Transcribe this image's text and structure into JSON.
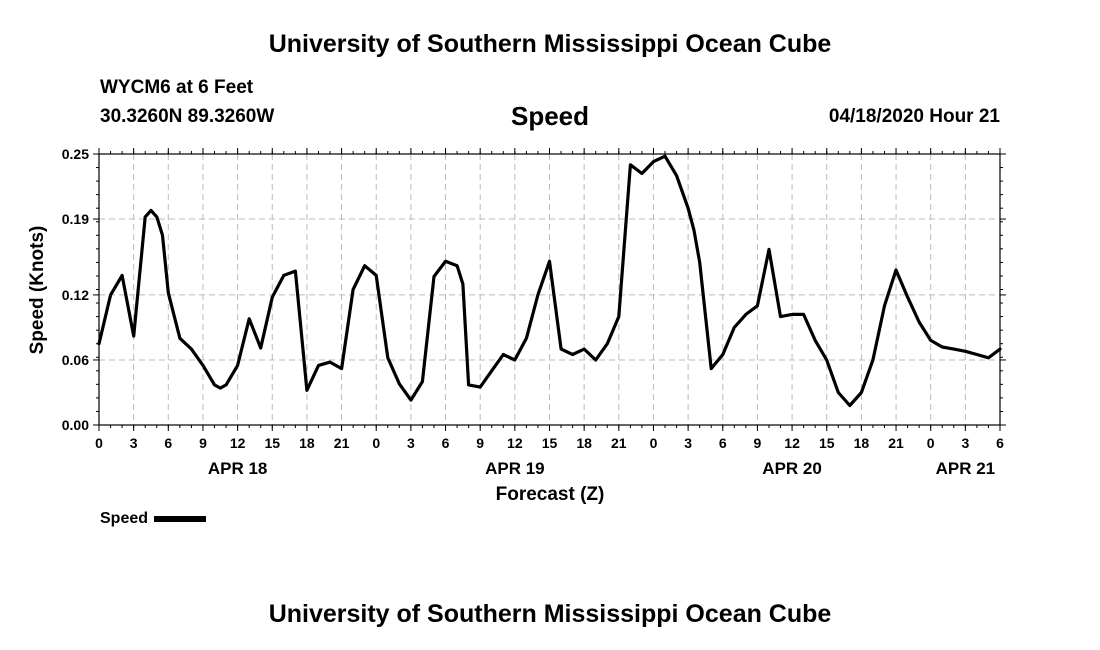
{
  "header": {
    "title_top": "University of Southern Mississippi Ocean Cube",
    "title_bottom": "University of Southern Mississippi Ocean Cube",
    "station": "WYCM6 at 6 Feet",
    "coords": "30.3260N 89.3260W",
    "datetime": "04/18/2020 Hour 21"
  },
  "legend": {
    "label": "Speed"
  },
  "chart_data": {
    "type": "line",
    "title": "Speed",
    "xlabel": "Forecast (Z)",
    "ylabel": "Speed (Knots)",
    "ylim": [
      0,
      0.25
    ],
    "yticks": [
      0.0,
      0.06,
      0.12,
      0.19,
      0.25
    ],
    "ytick_labels": [
      "0.00",
      "0.06",
      "0.12",
      "0.19",
      "0.25"
    ],
    "xlim": [
      0,
      78
    ],
    "xticks_hours": [
      0,
      3,
      6,
      9,
      12,
      15,
      18,
      21,
      24,
      27,
      30,
      33,
      36,
      39,
      42,
      45,
      48,
      51,
      54,
      57,
      60,
      63,
      66,
      69,
      72,
      75,
      78
    ],
    "xtick_labels": [
      "0",
      "3",
      "6",
      "9",
      "12",
      "15",
      "18",
      "21",
      "0",
      "3",
      "6",
      "9",
      "12",
      "15",
      "18",
      "21",
      "0",
      "3",
      "6",
      "9",
      "12",
      "15",
      "18",
      "21",
      "0",
      "3",
      "6"
    ],
    "date_labels": [
      {
        "label": "APR 18",
        "hour": 12
      },
      {
        "label": "APR 19",
        "hour": 36
      },
      {
        "label": "APR 20",
        "hour": 60
      },
      {
        "label": "APR 21",
        "hour": 75
      }
    ],
    "grid": true,
    "series": [
      {
        "name": "Speed",
        "x": [
          0,
          1,
          2,
          3,
          4,
          4.5,
          5,
          5.5,
          6,
          7,
          8,
          9,
          10,
          10.5,
          11,
          12,
          13,
          14,
          15,
          16,
          17,
          18,
          19,
          20,
          21,
          22,
          23,
          24,
          25,
          26,
          27,
          28,
          29,
          30,
          31,
          31.5,
          32,
          33,
          34,
          35,
          36,
          37,
          38,
          39,
          40,
          41,
          42,
          43,
          44,
          45,
          46,
          47,
          48,
          49,
          50,
          51,
          51.5,
          52,
          53,
          54,
          55,
          56,
          57,
          58,
          59,
          60,
          61,
          62,
          63,
          64,
          65,
          66,
          67,
          68,
          69,
          70,
          71,
          72,
          73,
          74,
          75,
          76,
          77,
          78
        ],
        "y": [
          0.075,
          0.12,
          0.138,
          0.082,
          0.192,
          0.198,
          0.192,
          0.175,
          0.122,
          0.08,
          0.07,
          0.055,
          0.037,
          0.034,
          0.037,
          0.055,
          0.098,
          0.071,
          0.118,
          0.138,
          0.142,
          0.032,
          0.055,
          0.058,
          0.052,
          0.125,
          0.147,
          0.138,
          0.062,
          0.038,
          0.023,
          0.04,
          0.137,
          0.151,
          0.147,
          0.13,
          0.037,
          0.035,
          0.05,
          0.065,
          0.06,
          0.08,
          0.12,
          0.151,
          0.07,
          0.065,
          0.07,
          0.06,
          0.075,
          0.1,
          0.24,
          0.232,
          0.243,
          0.248,
          0.23,
          0.2,
          0.18,
          0.15,
          0.052,
          0.065,
          0.09,
          0.102,
          0.11,
          0.162,
          0.1,
          0.102,
          0.102,
          0.078,
          0.06,
          0.03,
          0.018,
          0.03,
          0.06,
          0.11,
          0.143,
          0.118,
          0.095,
          0.078,
          0.072,
          0.07,
          0.068,
          0.065,
          0.062,
          0.07
        ]
      }
    ]
  }
}
